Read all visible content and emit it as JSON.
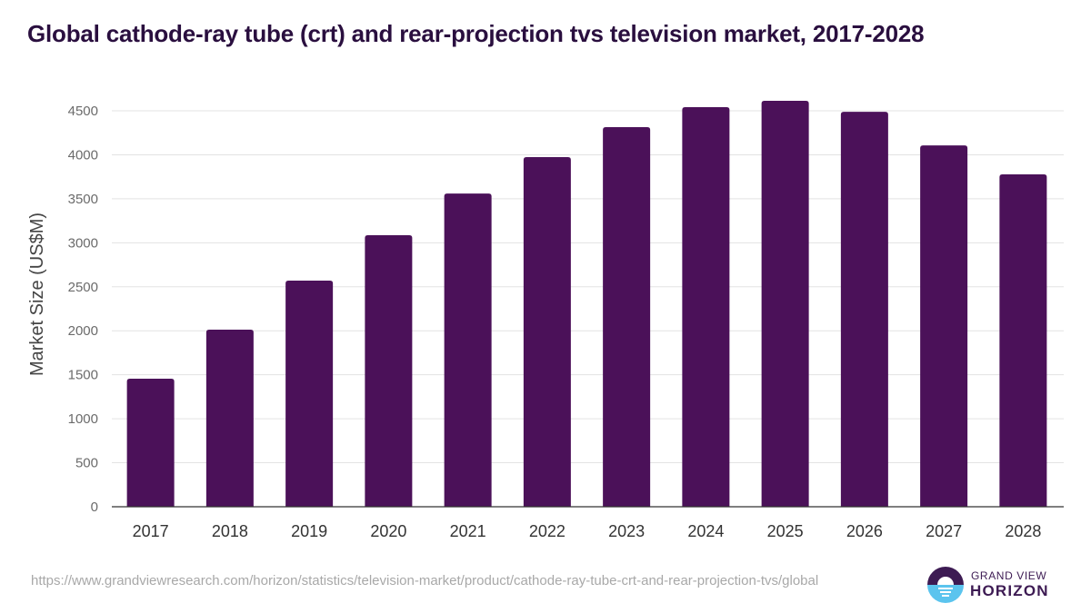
{
  "title": "Global cathode-ray tube (crt) and rear-projection tvs television market, 2017-2028",
  "source_url": "https://www.grandviewresearch.com/horizon/statistics/television-market/product/cathode-ray-tube-crt-and-rear-projection-tvs/global",
  "logo": {
    "line1": "GRAND VIEW",
    "line2": "HORIZON",
    "icon": "horizon-sun-icon"
  },
  "colors": {
    "bar": "#4b1159",
    "title": "#2a0f3f",
    "logo_dark": "#3d1b53",
    "logo_light": "#5bc4ee"
  },
  "chart_data": {
    "type": "bar",
    "title": "Global cathode-ray tube (crt) and rear-projection tvs television market, 2017-2028",
    "xlabel": "",
    "ylabel": "Market Size (US$M)",
    "categories": [
      "2017",
      "2018",
      "2019",
      "2020",
      "2021",
      "2022",
      "2023",
      "2024",
      "2025",
      "2026",
      "2027",
      "2028"
    ],
    "values": [
      1455,
      2012,
      2570,
      3086,
      3560,
      3973,
      4314,
      4541,
      4613,
      4489,
      4107,
      3777
    ],
    "ylim": [
      0,
      4500
    ],
    "yticks": [
      0,
      500,
      1000,
      1500,
      2000,
      2500,
      3000,
      3500,
      4000,
      4500
    ],
    "grid": true,
    "legend": "none"
  }
}
